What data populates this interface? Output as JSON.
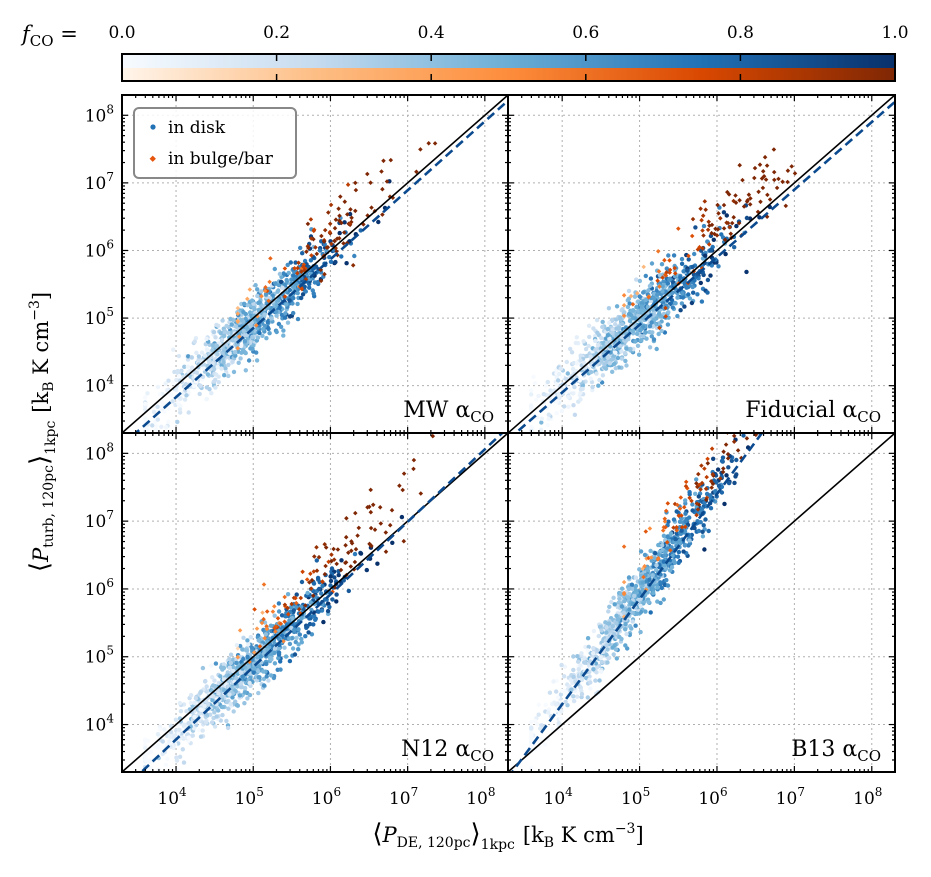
{
  "colorbar": {
    "label": "f_CO =",
    "label_main": "f",
    "label_sub": "CO",
    "label_eq": " = ",
    "ticks": [
      0.0,
      0.2,
      0.4,
      0.6,
      0.8,
      1.0
    ],
    "tick_labels": [
      "0.0",
      "0.2",
      "0.4",
      "0.6",
      "0.8",
      "1.0"
    ],
    "disk_colormap": [
      "#f7fbff",
      "#c6dbef",
      "#6baed6",
      "#2171b5",
      "#08306b"
    ],
    "bulge_colormap": [
      "#fff5eb",
      "#fdbe85",
      "#fd8d3c",
      "#d94801",
      "#7f2704"
    ]
  },
  "legend": {
    "position": "top-left",
    "entries": [
      {
        "label": "in disk",
        "color": "#2171b5"
      },
      {
        "label": "in bulge/bar",
        "color": "#e6550d"
      }
    ]
  },
  "axes": {
    "x_label": "⟨P_DE,120pc⟩_1kpc [k_B K cm^-3]",
    "x_label_main": "P",
    "x_label_sub1": "DE, 120pc",
    "x_label_sub2": "1kpc",
    "x_label_units": "[k",
    "x_label_units_sub": "B",
    "x_label_units_tail": " K cm",
    "x_label_units_sup": "−3",
    "y_label": "⟨P_turb,120pc⟩_1kpc [k_B K cm^-3]",
    "y_label_main": "P",
    "y_label_sub1": "turb, 120pc",
    "y_label_sub2": "1kpc",
    "y_label_units": "[k",
    "y_label_units_sub": "B",
    "y_label_units_tail": " K cm",
    "y_label_units_sup": "−3",
    "log_range": [
      3.3,
      8.3
    ],
    "tick_exponents": [
      4,
      5,
      6,
      7,
      8
    ],
    "tick_base": "10",
    "grid": true
  },
  "chart_data": [
    {
      "type": "scatter",
      "panel": "MW α_CO",
      "label_main": "MW α",
      "label_sub": "CO",
      "one_to_one": {
        "x": [
          3.3,
          8.3
        ],
        "y": [
          3.3,
          8.3
        ]
      },
      "fit": {
        "slope": 1.02,
        "intercept": -0.25
      },
      "bulge_shift": 0.35,
      "spread": 0.22
    },
    {
      "type": "scatter",
      "panel": "Fiducial α_CO",
      "label_main": "Fiducial α",
      "label_sub": "CO",
      "one_to_one": {
        "x": [
          3.3,
          8.3
        ],
        "y": [
          3.3,
          8.3
        ]
      },
      "fit": {
        "slope": 1.0,
        "intercept": -0.1
      },
      "bulge_shift": 0.45,
      "spread": 0.22
    },
    {
      "type": "scatter",
      "panel": "N12 α_CO",
      "label_main": "N12 α",
      "label_sub": "CO",
      "one_to_one": {
        "x": [
          3.3,
          8.3
        ],
        "y": [
          3.3,
          8.3
        ]
      },
      "fit": {
        "slope": 1.07,
        "intercept": -0.5
      },
      "bulge_shift": 0.45,
      "spread": 0.2
    },
    {
      "type": "scatter",
      "panel": "B13 α_CO",
      "label_main": "B13 α",
      "label_sub": "CO",
      "one_to_one": {
        "x": [
          3.3,
          8.3
        ],
        "y": [
          3.3,
          8.3
        ]
      },
      "fit": {
        "slope": 1.55,
        "intercept": -1.9
      },
      "bulge_shift": 0.5,
      "spread": 0.2
    }
  ]
}
